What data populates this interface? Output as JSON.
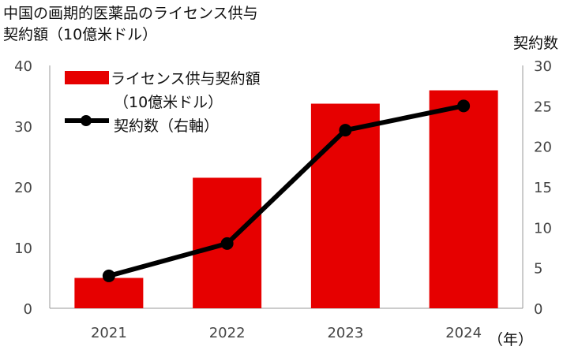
{
  "title_line1": "中国の画期的医薬品のライセンス供与",
  "title_line2": "契約額（10億米ドル）",
  "right_axis_title": "契約数",
  "x_unit": "（年）",
  "chart_data": {
    "type": "bar",
    "categories": [
      "2021",
      "2022",
      "2023",
      "2024"
    ],
    "series": [
      {
        "name": "ライセンス供与契約額（10億米ドル）",
        "type": "bar",
        "axis": "left",
        "values": [
          5,
          21.5,
          33.7,
          35.9
        ],
        "color": "#e60000"
      },
      {
        "name": "契約数（右軸）",
        "type": "line",
        "axis": "right",
        "values": [
          4,
          8,
          22,
          25
        ],
        "color": "#000000"
      }
    ],
    "left_ylim": [
      0,
      40
    ],
    "left_ticks": [
      "0",
      "10",
      "20",
      "30",
      "40"
    ],
    "right_ylim": [
      0,
      30
    ],
    "right_ticks": [
      "0",
      "5",
      "10",
      "15",
      "20",
      "25",
      "30"
    ],
    "legend": {
      "bar_label_line1": "ライセンス供与契約額",
      "bar_label_line2": "（10億米ドル）",
      "line_label": "契約数（右軸）"
    },
    "grid": false
  }
}
